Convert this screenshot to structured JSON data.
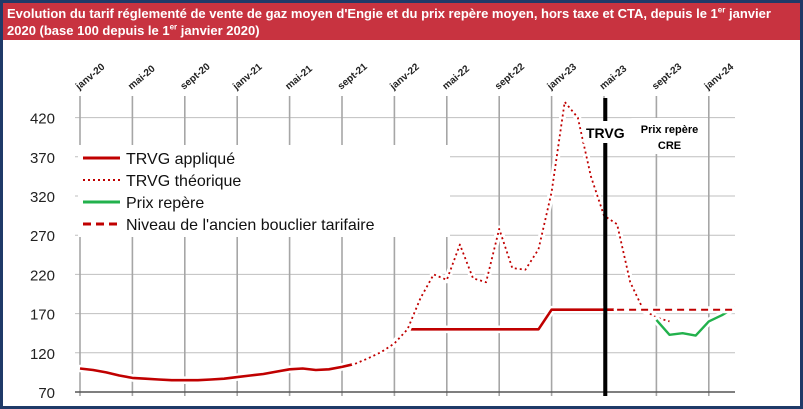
{
  "title": {
    "part1": "Evolution du tarif réglementé de vente de gaz moyen d'Engie et du prix repère moyen, hors taxe et CTA, depuis le 1",
    "sup1": "er",
    "part2": " janvier 2020 (base 100 depuis le 1",
    "sup2": "er",
    "part3": " janvier 2020)"
  },
  "colors": {
    "title_bg": "#c83340",
    "trvg": "#c00000",
    "prix_repere": "#22b14c",
    "grid_v": "#a6a6a6",
    "grid_h": "#bfbfbf",
    "frame": "#1f3a68"
  },
  "chart_data": {
    "type": "line",
    "x_ticks": [
      "janv-20",
      "mai-20",
      "sept-20",
      "janv-21",
      "mai-21",
      "sept-21",
      "janv-22",
      "mai-22",
      "sept-22",
      "janv-23",
      "mai-23",
      "sept-23",
      "janv-24"
    ],
    "ylim": [
      70,
      445
    ],
    "y_ticks": [
      70,
      120,
      170,
      220,
      270,
      320,
      370,
      420
    ],
    "legend": [
      {
        "key": "trvg_applique",
        "label": "TRVG appliqué",
        "style": "solid",
        "color": "#c00000"
      },
      {
        "key": "trvg_theorique",
        "label": "TRVG théorique",
        "style": "dotted",
        "color": "#c00000"
      },
      {
        "key": "prix_repere",
        "label": "Prix repère",
        "style": "solid",
        "color": "#22b14c"
      },
      {
        "key": "ancien_bouclier",
        "label": "Niveau de l'ancien bouclier tarifaire",
        "style": "dashed",
        "color": "#c00000"
      }
    ],
    "annotations": [
      {
        "text": "TRVG",
        "x": 40.1
      },
      {
        "text": "Prix repère CRE",
        "x": 45
      }
    ],
    "series": [
      {
        "key": "trvg_applique",
        "points": [
          [
            0,
            100
          ],
          [
            1,
            98
          ],
          [
            2,
            95
          ],
          [
            3,
            91
          ],
          [
            4,
            88
          ],
          [
            5,
            87
          ],
          [
            6,
            86
          ],
          [
            7,
            85
          ],
          [
            8,
            85
          ],
          [
            9,
            85
          ],
          [
            10,
            86
          ],
          [
            11,
            87
          ],
          [
            12,
            89
          ],
          [
            13,
            91
          ],
          [
            14,
            93
          ],
          [
            15,
            96
          ],
          [
            16,
            99
          ],
          [
            17,
            100
          ],
          [
            18,
            98
          ],
          [
            19,
            99
          ],
          [
            20,
            102
          ],
          [
            21,
            106
          ],
          [
            22,
            113
          ],
          [
            23,
            121
          ],
          [
            24,
            132
          ],
          [
            25,
            150
          ],
          [
            26,
            150
          ],
          [
            27,
            150
          ],
          [
            28,
            150
          ],
          [
            29,
            150
          ],
          [
            30,
            150
          ],
          [
            31,
            150
          ],
          [
            32,
            150
          ],
          [
            33,
            150
          ],
          [
            34,
            150
          ],
          [
            35,
            150
          ],
          [
            36,
            175
          ],
          [
            37,
            175
          ],
          [
            38,
            175
          ],
          [
            39,
            175
          ],
          [
            40,
            175
          ],
          [
            41,
            175
          ]
        ]
      },
      {
        "key": "trvg_theorique",
        "points": [
          [
            21,
            106
          ],
          [
            22,
            113
          ],
          [
            23,
            121
          ],
          [
            24,
            132
          ],
          [
            25,
            150
          ],
          [
            26,
            190
          ],
          [
            27,
            220
          ],
          [
            28,
            213
          ],
          [
            29,
            258
          ],
          [
            30,
            215
          ],
          [
            31,
            210
          ],
          [
            32,
            278
          ],
          [
            33,
            228
          ],
          [
            34,
            226
          ],
          [
            35,
            252
          ],
          [
            36,
            325
          ],
          [
            37,
            440
          ],
          [
            38,
            420
          ],
          [
            39,
            345
          ],
          [
            40,
            295
          ],
          [
            41,
            284
          ],
          [
            42,
            210
          ],
          [
            43,
            175
          ],
          [
            44,
            165
          ],
          [
            45,
            160
          ]
        ]
      },
      {
        "key": "prix_repere",
        "points": [
          [
            44,
            162
          ],
          [
            45,
            143
          ],
          [
            46,
            145
          ],
          [
            47,
            142
          ],
          [
            48,
            160
          ],
          [
            49,
            168
          ],
          [
            50,
            178
          ]
        ]
      },
      {
        "key": "ancien_bouclier",
        "points": [
          [
            41,
            175
          ],
          [
            50,
            175
          ]
        ]
      }
    ]
  }
}
